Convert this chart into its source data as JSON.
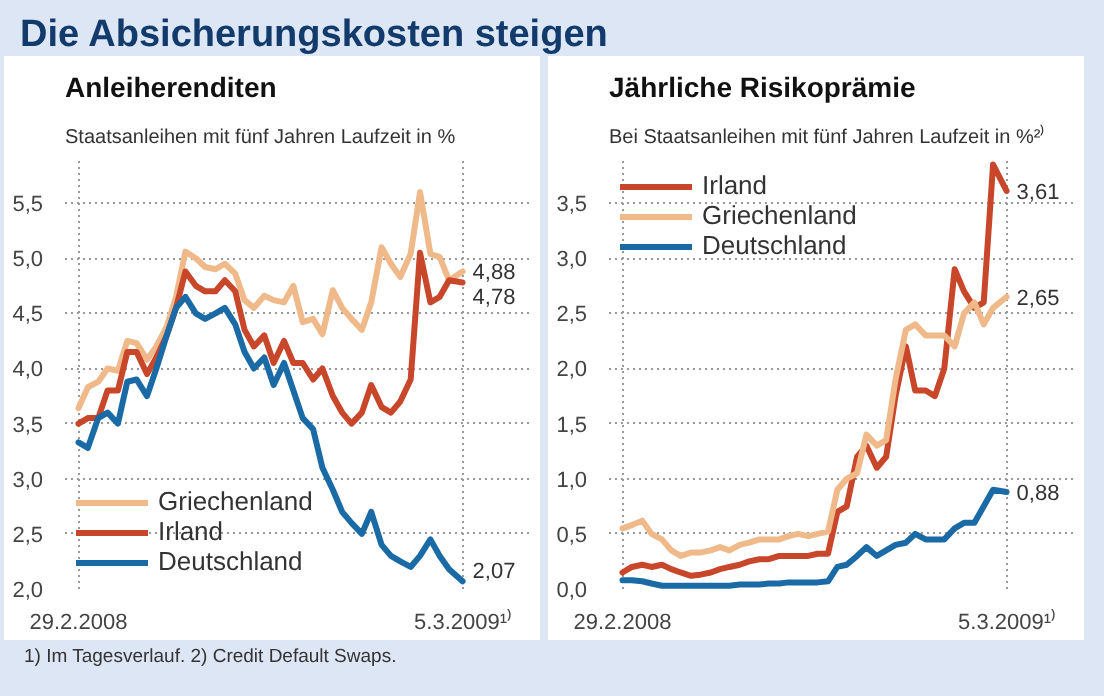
{
  "chart_data": [
    {
      "type": "line",
      "title": "Anleiherenditen",
      "subtitle": "Staatsanleihen mit fünf Jahren Laufzeit in %",
      "annotations": [
        "Die Absicherungskosten steigen",
        "1) Im Tagesverlauf. 2) Credit Default Swaps."
      ],
      "x": [
        "2008-02-29",
        "2008-03-09",
        "2008-03-19",
        "2008-03-28",
        "2008-04-07",
        "2008-04-16",
        "2008-04-25",
        "2008-05-05",
        "2008-05-14",
        "2008-05-24",
        "2008-06-02",
        "2008-06-11",
        "2008-06-21",
        "2008-06-30",
        "2008-07-10",
        "2008-07-19",
        "2008-07-29",
        "2008-08-07",
        "2008-08-16",
        "2008-08-26",
        "2008-09-04",
        "2008-09-14",
        "2008-09-23",
        "2008-10-02",
        "2008-10-12",
        "2008-10-21",
        "2008-10-31",
        "2008-11-09",
        "2008-11-18",
        "2008-11-28",
        "2008-12-07",
        "2008-12-17",
        "2008-12-26",
        "2009-01-04",
        "2009-01-14",
        "2009-01-23",
        "2009-02-02",
        "2009-02-11",
        "2009-02-20",
        "2009-03-05"
      ],
      "series": [
        {
          "name": "Griechenland",
          "color": "#f0b98a",
          "values": [
            3.64,
            3.83,
            3.88,
            4.0,
            3.98,
            4.25,
            4.23,
            4.08,
            4.2,
            4.38,
            4.65,
            5.06,
            5.0,
            4.92,
            4.9,
            4.95,
            4.86,
            4.62,
            4.55,
            4.66,
            4.62,
            4.6,
            4.75,
            4.42,
            4.45,
            4.31,
            4.71,
            4.55,
            4.45,
            4.35,
            4.6,
            5.1,
            4.95,
            4.83,
            5.04,
            5.6,
            5.04,
            5.01,
            4.8,
            4.88
          ],
          "value_labels": [
            null,
            null,
            null,
            null,
            null,
            null,
            null,
            null,
            null,
            null,
            null,
            null,
            null,
            null,
            null,
            null,
            null,
            null,
            null,
            null,
            null,
            null,
            null,
            null,
            null,
            null,
            null,
            null,
            null,
            null,
            null,
            null,
            null,
            null,
            null,
            null,
            null,
            null,
            null,
            "4,88"
          ]
        },
        {
          "name": "Irland",
          "color": "#c8462a",
          "values": [
            3.5,
            3.55,
            3.55,
            3.8,
            3.8,
            4.15,
            4.15,
            3.95,
            4.1,
            4.3,
            4.55,
            4.88,
            4.75,
            4.7,
            4.7,
            4.8,
            4.7,
            4.35,
            4.2,
            4.3,
            4.05,
            4.25,
            4.05,
            4.05,
            3.9,
            4.0,
            3.75,
            3.6,
            3.5,
            3.6,
            3.85,
            3.65,
            3.6,
            3.7,
            3.9,
            5.05,
            4.6,
            4.65,
            4.8,
            4.78
          ],
          "value_labels": [
            null,
            null,
            null,
            null,
            null,
            null,
            null,
            null,
            null,
            null,
            null,
            null,
            null,
            null,
            null,
            null,
            null,
            null,
            null,
            null,
            null,
            null,
            null,
            null,
            null,
            null,
            null,
            null,
            null,
            null,
            null,
            null,
            null,
            null,
            null,
            null,
            null,
            null,
            null,
            "4,78"
          ]
        },
        {
          "name": "Deutschland",
          "color": "#1a6aa6",
          "values": [
            3.33,
            3.28,
            3.55,
            3.6,
            3.5,
            3.88,
            3.9,
            3.75,
            4.0,
            4.3,
            4.55,
            4.65,
            4.5,
            4.45,
            4.5,
            4.55,
            4.4,
            4.15,
            4.0,
            4.1,
            3.85,
            4.05,
            3.8,
            3.55,
            3.45,
            3.1,
            2.9,
            2.7,
            2.6,
            2.5,
            2.7,
            2.4,
            2.3,
            2.25,
            2.2,
            2.3,
            2.45,
            2.3,
            2.18,
            2.07
          ],
          "value_labels": [
            null,
            null,
            null,
            null,
            null,
            null,
            null,
            null,
            null,
            null,
            null,
            null,
            null,
            null,
            null,
            null,
            null,
            null,
            null,
            null,
            null,
            null,
            null,
            null,
            null,
            null,
            null,
            null,
            null,
            null,
            null,
            null,
            null,
            null,
            null,
            null,
            null,
            null,
            null,
            "2,07"
          ]
        }
      ],
      "xlim": [
        "2008-02-16",
        "2009-05-08"
      ],
      "xticks": [
        {
          "value": "2008-02-29",
          "label": "29.2.2008"
        },
        {
          "value": "2009-03-05",
          "label": "5.3.2009¹⁾"
        }
      ],
      "ylim": [
        2.0,
        5.9
      ],
      "yticks": [
        {
          "value": 2.0,
          "label": "2,0"
        },
        {
          "value": 2.5,
          "label": "2,5"
        },
        {
          "value": 3.0,
          "label": "3,0"
        },
        {
          "value": 3.5,
          "label": "3,5"
        },
        {
          "value": 4.0,
          "label": "4,0"
        },
        {
          "value": 4.5,
          "label": "4,5"
        },
        {
          "value": 5.0,
          "label": "5,0"
        },
        {
          "value": 5.5,
          "label": "5,5"
        }
      ],
      "grid": true,
      "legend": "bottom left",
      "line_style": "solid"
    },
    {
      "type": "line",
      "title": "Jährliche Risikoprämie",
      "subtitle": "Bei Staatsanleihen mit fünf Jahren Laufzeit in %²⁾",
      "x": [
        "2008-02-29",
        "2008-03-09",
        "2008-03-19",
        "2008-03-28",
        "2008-04-07",
        "2008-04-16",
        "2008-04-25",
        "2008-05-05",
        "2008-05-14",
        "2008-05-24",
        "2008-06-02",
        "2008-06-11",
        "2008-06-21",
        "2008-06-30",
        "2008-07-10",
        "2008-07-19",
        "2008-07-29",
        "2008-08-07",
        "2008-08-16",
        "2008-08-26",
        "2008-09-04",
        "2008-09-14",
        "2008-09-23",
        "2008-10-02",
        "2008-10-12",
        "2008-10-21",
        "2008-10-31",
        "2008-11-09",
        "2008-11-18",
        "2008-11-28",
        "2008-12-07",
        "2008-12-17",
        "2008-12-26",
        "2009-01-04",
        "2009-01-14",
        "2009-01-23",
        "2009-02-02",
        "2009-02-11",
        "2009-02-20",
        "2009-03-05"
      ],
      "series": [
        {
          "name": "Irland",
          "color": "#c8462a",
          "values": [
            0.15,
            0.2,
            0.22,
            0.2,
            0.22,
            0.18,
            0.15,
            0.12,
            0.13,
            0.15,
            0.18,
            0.2,
            0.22,
            0.25,
            0.27,
            0.27,
            0.3,
            0.3,
            0.3,
            0.3,
            0.32,
            0.32,
            0.7,
            0.75,
            1.2,
            1.3,
            1.1,
            1.2,
            1.75,
            2.2,
            1.8,
            1.8,
            1.75,
            2.0,
            2.9,
            2.7,
            2.55,
            2.6,
            3.85,
            3.61
          ],
          "value_labels": [
            null,
            null,
            null,
            null,
            null,
            null,
            null,
            null,
            null,
            null,
            null,
            null,
            null,
            null,
            null,
            null,
            null,
            null,
            null,
            null,
            null,
            null,
            null,
            null,
            null,
            null,
            null,
            null,
            null,
            null,
            null,
            null,
            null,
            null,
            null,
            null,
            null,
            null,
            null,
            "3,61"
          ]
        },
        {
          "name": "Griechenland",
          "color": "#f0b98a",
          "values": [
            0.55,
            0.58,
            0.62,
            0.5,
            0.45,
            0.35,
            0.3,
            0.33,
            0.33,
            0.35,
            0.38,
            0.35,
            0.4,
            0.42,
            0.45,
            0.45,
            0.45,
            0.48,
            0.5,
            0.48,
            0.5,
            0.52,
            0.9,
            1.0,
            1.05,
            1.4,
            1.3,
            1.35,
            1.9,
            2.35,
            2.4,
            2.3,
            2.3,
            2.3,
            2.2,
            2.5,
            2.6,
            2.4,
            2.55,
            2.65
          ],
          "value_labels": [
            null,
            null,
            null,
            null,
            null,
            null,
            null,
            null,
            null,
            null,
            null,
            null,
            null,
            null,
            null,
            null,
            null,
            null,
            null,
            null,
            null,
            null,
            null,
            null,
            null,
            null,
            null,
            null,
            null,
            null,
            null,
            null,
            null,
            null,
            null,
            null,
            null,
            null,
            null,
            "2,65"
          ]
        },
        {
          "name": "Deutschland",
          "color": "#1a6aa6",
          "values": [
            0.08,
            0.08,
            0.07,
            0.05,
            0.03,
            0.03,
            0.03,
            0.03,
            0.03,
            0.03,
            0.03,
            0.03,
            0.04,
            0.04,
            0.04,
            0.05,
            0.05,
            0.06,
            0.06,
            0.06,
            0.06,
            0.07,
            0.2,
            0.22,
            0.3,
            0.38,
            0.3,
            0.35,
            0.4,
            0.42,
            0.5,
            0.45,
            0.45,
            0.45,
            0.55,
            0.6,
            0.6,
            0.75,
            0.9,
            0.88
          ],
          "value_labels": [
            null,
            null,
            null,
            null,
            null,
            null,
            null,
            null,
            null,
            null,
            null,
            null,
            null,
            null,
            null,
            null,
            null,
            null,
            null,
            null,
            null,
            null,
            null,
            null,
            null,
            null,
            null,
            null,
            null,
            null,
            null,
            null,
            null,
            null,
            null,
            null,
            null,
            null,
            null,
            "0,88"
          ]
        }
      ],
      "xlim": [
        "2008-02-16",
        "2009-05-08"
      ],
      "xticks": [
        {
          "value": "2008-02-29",
          "label": "29.2.2008"
        },
        {
          "value": "2009-03-05",
          "label": "5.3.2009¹⁾"
        }
      ],
      "ylim": [
        0.0,
        3.9
      ],
      "yticks": [
        {
          "value": 0.0,
          "label": "0,0"
        },
        {
          "value": 0.5,
          "label": "0,5"
        },
        {
          "value": 1.0,
          "label": "1,0"
        },
        {
          "value": 1.5,
          "label": "1,5"
        },
        {
          "value": 2.0,
          "label": "2,0"
        },
        {
          "value": 2.5,
          "label": "2,5"
        },
        {
          "value": 3.0,
          "label": "3,0"
        },
        {
          "value": 3.5,
          "label": "3,5"
        }
      ],
      "grid": true,
      "legend": "top left",
      "line_style": "solid"
    }
  ]
}
